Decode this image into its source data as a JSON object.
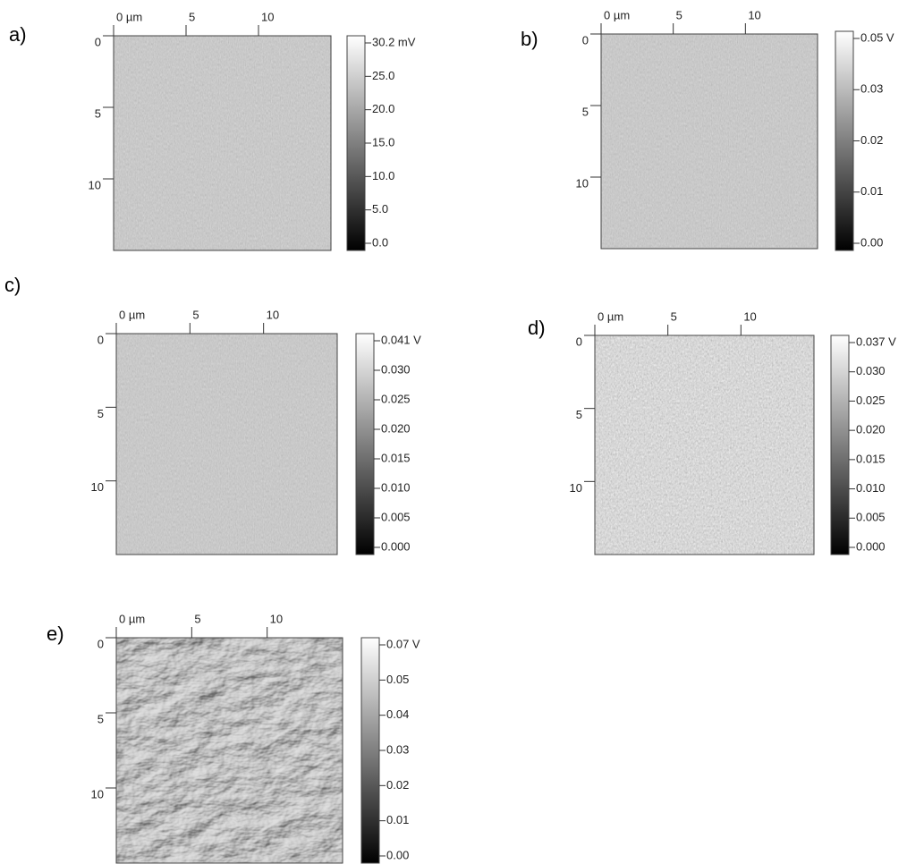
{
  "panels": [
    {
      "label": "a)",
      "x_ticks": [
        "0 µm",
        "5",
        "10"
      ],
      "y_ticks": [
        "0",
        "5",
        "10"
      ],
      "colorbar_ticks": [
        "30.2 mV",
        "25.0",
        "20.0",
        "15.0",
        "10.0",
        "5.0",
        "0.0"
      ]
    },
    {
      "label": "b)",
      "x_ticks": [
        "0 µm",
        "5",
        "10"
      ],
      "y_ticks": [
        "0",
        "5",
        "10"
      ],
      "colorbar_ticks": [
        "0.05 V",
        "0.03",
        "0.02",
        "0.01",
        "0.00"
      ]
    },
    {
      "label": "c)",
      "x_ticks": [
        "0 µm",
        "5",
        "10"
      ],
      "y_ticks": [
        "0",
        "5",
        "10"
      ],
      "colorbar_ticks": [
        "0.041 V",
        "0.030",
        "0.025",
        "0.020",
        "0.015",
        "0.010",
        "0.005",
        "0.000"
      ]
    },
    {
      "label": "d)",
      "x_ticks": [
        "0 µm",
        "5",
        "10"
      ],
      "y_ticks": [
        "0",
        "5",
        "10"
      ],
      "colorbar_ticks": [
        "0.037 V",
        "0.030",
        "0.025",
        "0.020",
        "0.015",
        "0.010",
        "0.005",
        "0.000"
      ]
    },
    {
      "label": "e)",
      "x_ticks": [
        "0 µm",
        "5",
        "10"
      ],
      "y_ticks": [
        "0",
        "5",
        "10"
      ],
      "colorbar_ticks": [
        "0.07 V",
        "0.05",
        "0.04",
        "0.03",
        "0.02",
        "0.01",
        "0.00"
      ]
    }
  ]
}
